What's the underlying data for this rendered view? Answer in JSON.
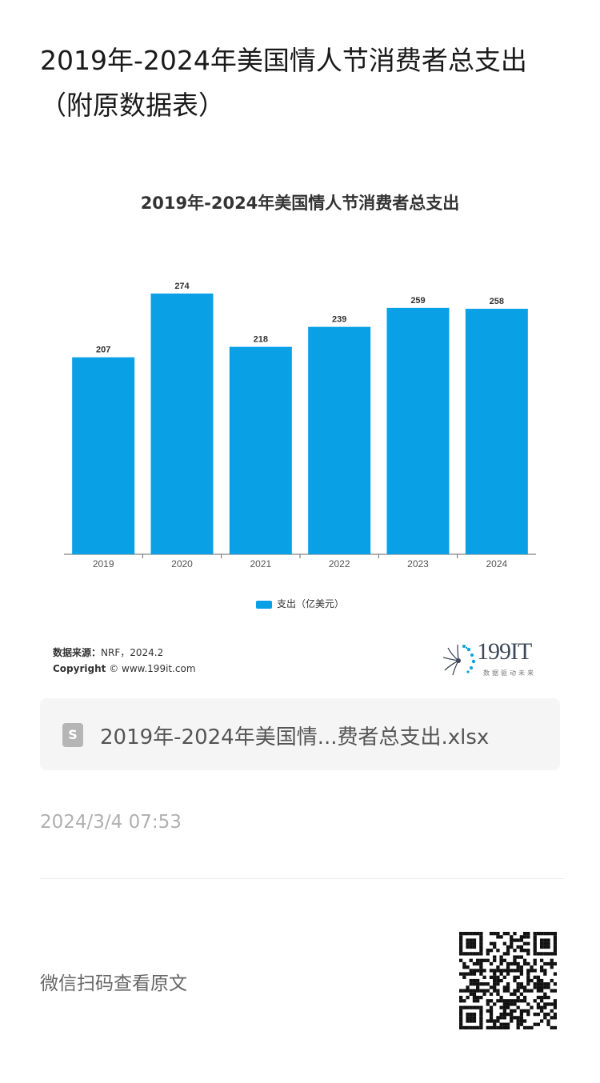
{
  "article": {
    "title": "2019年-2024年美国情人节消费者总支出（附原数据表）"
  },
  "chart_data": {
    "type": "bar",
    "title": "2019年-2024年美国情人节消费者总支出",
    "categories": [
      "2019",
      "2020",
      "2021",
      "2022",
      "2023",
      "2024"
    ],
    "series": [
      {
        "name": "支出（亿美元）",
        "values": [
          207,
          274,
          218,
          239,
          259,
          258
        ]
      }
    ],
    "data_labels": [
      "207",
      "274",
      "218",
      "239",
      "259",
      "258"
    ],
    "ylim": [
      0,
      274
    ],
    "grid": false,
    "legend_position": "bottom",
    "bar_color": "#0aa0e6"
  },
  "source": {
    "label": "数据来源：",
    "text": "NRF，2024.2",
    "copyright_label": "Copyright",
    "copyright_text": "© www.199it.com"
  },
  "brand": {
    "logo_text": "199IT",
    "tagline": "数据驱动未来"
  },
  "attachment": {
    "icon_letter": "S",
    "filename": "2019年-2024年美国情...费者总支出.xlsx"
  },
  "meta": {
    "timestamp": "2024/3/4 07:53",
    "wechat_prompt": "微信扫码查看原文"
  }
}
